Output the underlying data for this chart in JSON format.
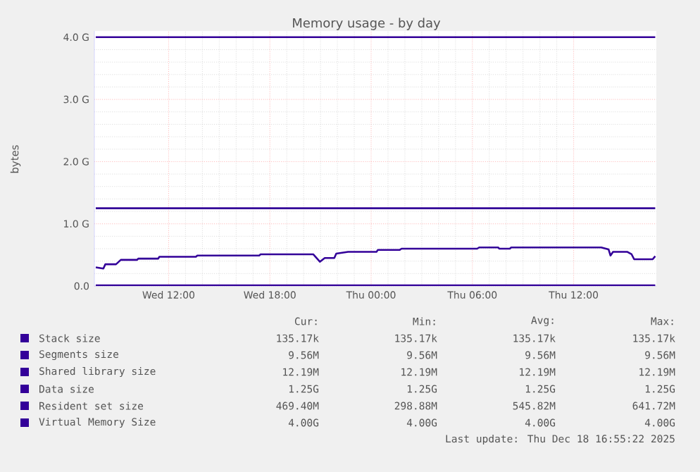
{
  "chart_data": {
    "type": "line",
    "title": "Memory usage - by day",
    "ylabel": "bytes",
    "xlim": [
      "2025-12-17T07:36",
      "2025-12-18T16:54"
    ],
    "xticks": [
      {
        "value": "2025-12-17T12:00",
        "label": "Wed 12:00"
      },
      {
        "value": "2025-12-17T18:00",
        "label": "Wed 18:00"
      },
      {
        "value": "2025-12-18T00:00",
        "label": "Thu 00:00"
      },
      {
        "value": "2025-12-18T06:00",
        "label": "Thu 06:00"
      },
      {
        "value": "2025-12-18T12:00",
        "label": "Thu 12:00"
      }
    ],
    "ylim": [
      0,
      4.1
    ],
    "yticks": [
      {
        "value": 0,
        "label": "0.0"
      },
      {
        "value": 1,
        "label": "1.0 G"
      },
      {
        "value": 2,
        "label": "2.0 G"
      },
      {
        "value": 3,
        "label": "3.0 G"
      },
      {
        "value": 4,
        "label": "4.0 G"
      }
    ],
    "grid": true,
    "legend": "bottom",
    "line_style": "solid",
    "marker": "none",
    "series": [
      {
        "name": "Stack size",
        "color": "#330099",
        "values": [
          null,
          null
        ]
      },
      {
        "name": "Segments size",
        "color": "#330099",
        "values": [
          null,
          null
        ]
      },
      {
        "name": "Shared library size",
        "color": "#330099",
        "x": [
          "2025-12-17T07:41",
          "2025-12-18T16:50"
        ],
        "values": [
          0.01,
          0.01
        ]
      },
      {
        "name": "Data size",
        "color": "#330099",
        "x": [
          "2025-12-17T07:41",
          "2025-12-18T16:50"
        ],
        "values": [
          1.25,
          1.25
        ]
      },
      {
        "name": "Resident set size",
        "color": "#330099",
        "x": [
          "2025-12-17T07:41",
          "2025-12-17T08:08",
          "2025-12-17T08:15",
          "2025-12-17T08:53",
          "2025-12-17T09:10",
          "2025-12-17T10:08",
          "2025-12-17T10:12",
          "2025-12-17T11:23",
          "2025-12-17T11:27",
          "2025-12-17T13:37",
          "2025-12-17T13:42",
          "2025-12-17T17:22",
          "2025-12-17T17:27",
          "2025-12-17T20:34",
          "2025-12-17T20:58",
          "2025-12-17T21:15",
          "2025-12-17T21:49",
          "2025-12-17T21:56",
          "2025-12-17T22:38",
          "2025-12-18T00:19",
          "2025-12-18T00:24",
          "2025-12-18T01:41",
          "2025-12-18T01:48",
          "2025-12-18T06:17",
          "2025-12-18T06:24",
          "2025-12-18T07:32",
          "2025-12-18T07:36",
          "2025-12-18T08:13",
          "2025-12-18T08:18",
          "2025-12-18T13:38",
          "2025-12-18T14:04",
          "2025-12-18T14:11",
          "2025-12-18T14:20",
          "2025-12-18T15:10",
          "2025-12-18T15:26",
          "2025-12-18T15:35",
          "2025-12-18T16:41",
          "2025-12-18T16:50"
        ],
        "values": [
          0.3,
          0.28,
          0.35,
          0.35,
          0.42,
          0.42,
          0.44,
          0.44,
          0.47,
          0.47,
          0.49,
          0.49,
          0.51,
          0.51,
          0.39,
          0.45,
          0.45,
          0.52,
          0.55,
          0.55,
          0.58,
          0.58,
          0.6,
          0.6,
          0.62,
          0.62,
          0.6,
          0.6,
          0.62,
          0.62,
          0.59,
          0.49,
          0.55,
          0.55,
          0.51,
          0.43,
          0.43,
          0.48
        ]
      },
      {
        "name": "Virtual Memory Size",
        "color": "#330099",
        "x": [
          "2025-12-17T07:41",
          "2025-12-18T16:50"
        ],
        "values": [
          4.0,
          4.0
        ]
      }
    ],
    "annotations": [
      "Cur:",
      "Min:",
      "Avg:",
      "Max:",
      "135.17k",
      "135.17k",
      "135.17k",
      "135.17k",
      "9.56M",
      "9.56M",
      "9.56M",
      "9.56M",
      "12.19M",
      "12.19M",
      "12.19M",
      "12.19M",
      "1.25G",
      "1.25G",
      "1.25G",
      "1.25G",
      "469.40M",
      "298.88M",
      "545.82M",
      "641.72M",
      "4.00G",
      "4.00G",
      "4.00G",
      "4.00G",
      "Last update: Thu Dec 18 16:55:22 2025"
    ]
  }
}
